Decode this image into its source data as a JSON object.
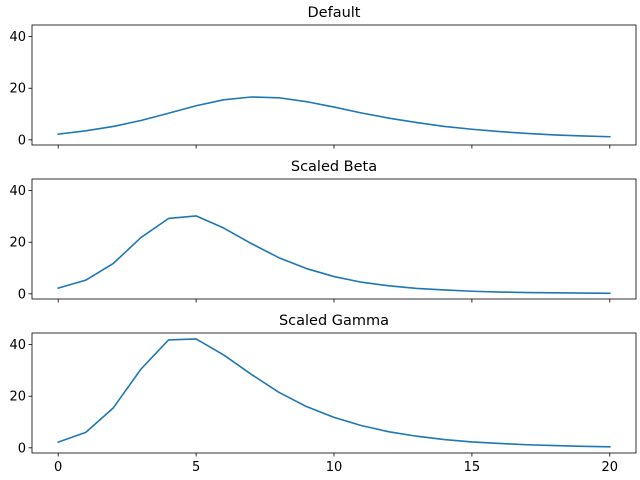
{
  "chart_data": [
    {
      "type": "line",
      "title": "Default",
      "xlabel": "",
      "ylabel": "",
      "xlim": [
        -0.95,
        20.95
      ],
      "ylim": [
        -2.0,
        44.5
      ],
      "xticks": [
        0,
        5,
        10,
        15,
        20
      ],
      "yticks": [
        0,
        20,
        40
      ],
      "show_x_tick_labels": false,
      "grid": false,
      "color": "#1f77b4",
      "x": [
        0,
        1,
        2,
        3,
        4,
        5,
        6,
        7,
        8,
        9,
        10,
        11,
        12,
        13,
        14,
        15,
        16,
        17,
        18,
        19,
        20
      ],
      "y": [
        2.2,
        3.5,
        5.2,
        7.5,
        10.3,
        13.2,
        15.5,
        16.6,
        16.3,
        14.8,
        12.7,
        10.4,
        8.4,
        6.7,
        5.2,
        4.1,
        3.2,
        2.5,
        1.9,
        1.5,
        1.2
      ]
    },
    {
      "type": "line",
      "title": "Scaled Beta",
      "xlabel": "",
      "ylabel": "",
      "xlim": [
        -0.95,
        20.95
      ],
      "ylim": [
        -2.0,
        44.5
      ],
      "xticks": [
        0,
        5,
        10,
        15,
        20
      ],
      "yticks": [
        0,
        20,
        40
      ],
      "show_x_tick_labels": false,
      "grid": false,
      "color": "#1f77b4",
      "x": [
        0,
        1,
        2,
        3,
        4,
        5,
        6,
        7,
        8,
        9,
        10,
        11,
        12,
        13,
        14,
        15,
        16,
        17,
        18,
        19,
        20
      ],
      "y": [
        2.2,
        5.3,
        11.8,
        21.8,
        29.2,
        30.2,
        25.5,
        19.5,
        14.0,
        9.8,
        6.7,
        4.5,
        3.1,
        2.1,
        1.5,
        1.0,
        0.7,
        0.5,
        0.4,
        0.3,
        0.2
      ]
    },
    {
      "type": "line",
      "title": "Scaled Gamma",
      "xlabel": "",
      "ylabel": "",
      "xlim": [
        -0.95,
        20.95
      ],
      "ylim": [
        -2.0,
        44.5
      ],
      "xticks": [
        0,
        5,
        10,
        15,
        20
      ],
      "yticks": [
        0,
        20,
        40
      ],
      "show_x_tick_labels": true,
      "grid": false,
      "color": "#1f77b4",
      "x": [
        0,
        1,
        2,
        3,
        4,
        5,
        6,
        7,
        8,
        9,
        10,
        11,
        12,
        13,
        14,
        15,
        16,
        17,
        18,
        19,
        20
      ],
      "y": [
        2.2,
        6.0,
        15.5,
        30.5,
        41.8,
        42.2,
        36.0,
        28.5,
        21.5,
        16.0,
        11.8,
        8.6,
        6.2,
        4.5,
        3.2,
        2.3,
        1.7,
        1.2,
        0.9,
        0.6,
        0.4
      ]
    }
  ]
}
